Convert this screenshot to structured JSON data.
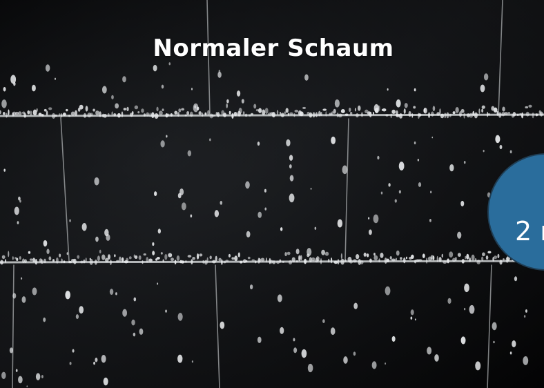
{
  "caption": "Normaler Schaum",
  "badge": {
    "text": "2 r",
    "color": "#2a6d9c"
  },
  "photo": {
    "subject": "foam-wall-photo"
  }
}
